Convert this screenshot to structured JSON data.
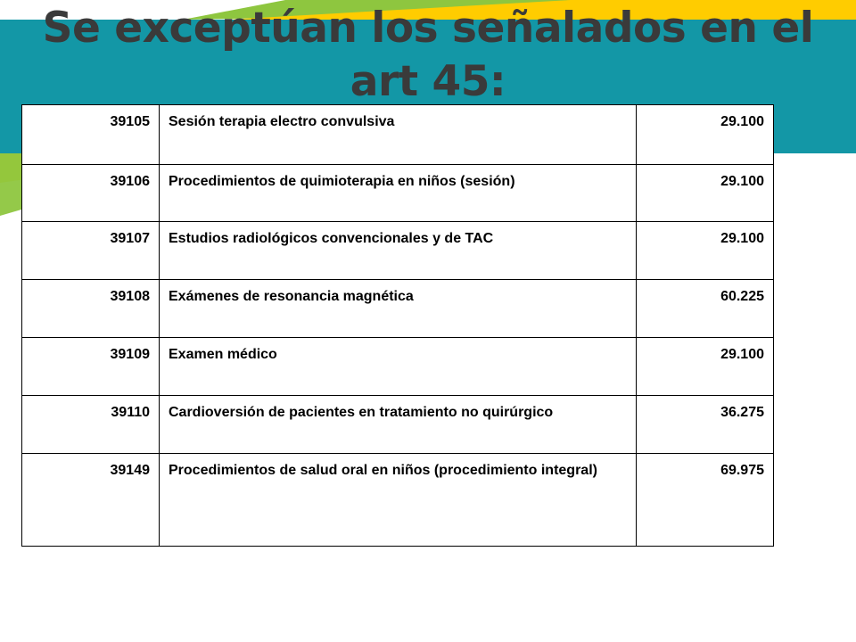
{
  "slide": {
    "title": "Se exceptúan los señalados en el art 45:",
    "colors": {
      "teal_band": "#1397a6",
      "green_stripe": "#8ec63f",
      "yellow_stripe": "#ffcc00",
      "title_text": "#3a3a3a"
    }
  },
  "table": {
    "rows": [
      {
        "code": "39105",
        "description": "Sesión terapia electro convulsiva",
        "value": "29.100"
      },
      {
        "code": "39106",
        "description": "Procedimientos  de quimioterapia en niños (sesión)",
        "value": "29.100"
      },
      {
        "code": "39107",
        "description": "Estudios radiológicos convencionales y de TAC",
        "value": "29.100"
      },
      {
        "code": "39108",
        "description": "Exámenes de resonancia magnética",
        "value": "60.225"
      },
      {
        "code": "39109",
        "description": "Examen médico",
        "value": "29.100"
      },
      {
        "code": "39110",
        "description": "Cardioversión de pacientes en tratamiento no quirúrgico",
        "value": "36.275"
      },
      {
        "code": "39149",
        "description": "Procedimientos de salud oral en niños (procedimiento integral)",
        "value": "69.975"
      }
    ]
  }
}
